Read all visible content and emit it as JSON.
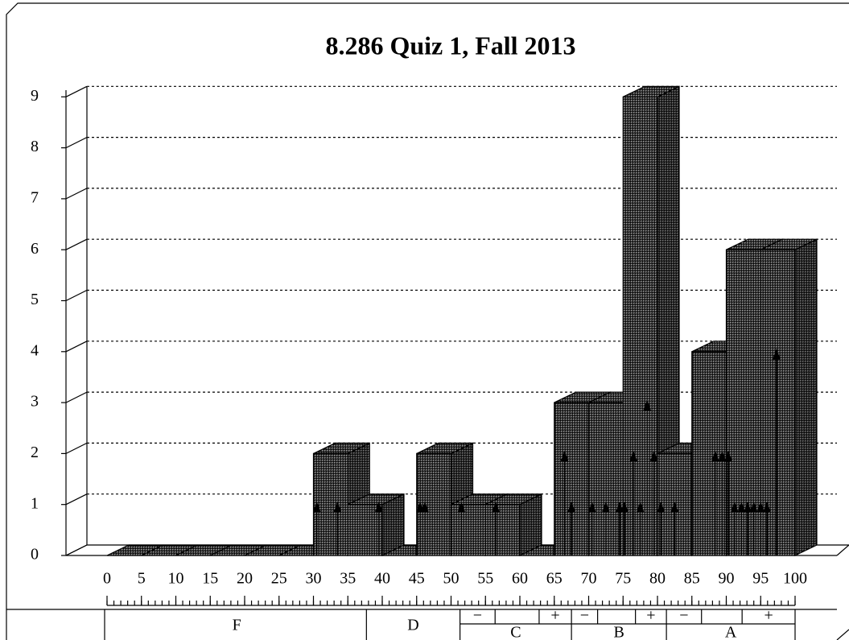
{
  "chart_data": {
    "type": "histogram",
    "title": "8.286 Quiz 1, Fall 2013",
    "bins": [
      0,
      5,
      10,
      15,
      20,
      25,
      30,
      35,
      40,
      45,
      50,
      55,
      60,
      65,
      70,
      75,
      80,
      85,
      90,
      95,
      100
    ],
    "counts": [
      0,
      0,
      0,
      0,
      0,
      0,
      2,
      1,
      0,
      2,
      1,
      1,
      0,
      3,
      3,
      9,
      2,
      4,
      6,
      6
    ],
    "xlim": [
      0,
      100
    ],
    "xticks": [
      0,
      5,
      10,
      15,
      20,
      25,
      30,
      35,
      40,
      45,
      50,
      55,
      60,
      65,
      70,
      75,
      80,
      85,
      90,
      95,
      100
    ],
    "ylim": [
      0,
      9
    ],
    "yticks": [
      0,
      1,
      2,
      3,
      4,
      5,
      6,
      7,
      8,
      9
    ],
    "grid": true,
    "scores": {
      "x": [
        30.5,
        33.5,
        39.5,
        45.5,
        46.2,
        51.5,
        56.5,
        66.5,
        67.5,
        70.5,
        72.5,
        74.5,
        75.2,
        76.5,
        77.5,
        78.5,
        79.5,
        80.5,
        82.5,
        88.4,
        89.4,
        90.3,
        91.2,
        92.2,
        93.1,
        94.0,
        95.0,
        95.9,
        97.3
      ],
      "counts": [
        1,
        1,
        1,
        1,
        1,
        1,
        1,
        2,
        1,
        1,
        1,
        1,
        1,
        2,
        1,
        3,
        2,
        1,
        1,
        2,
        2,
        2,
        1,
        1,
        1,
        1,
        1,
        1,
        4
      ]
    },
    "grades": [
      {
        "name": "F",
        "from": 0,
        "to": 37.7
      },
      {
        "name": "D",
        "from": 37.7,
        "to": 51.3
      },
      {
        "name": "C",
        "from": 51.3,
        "to": 67.5,
        "minus": "−",
        "minus_to": 56.4,
        "plus": "+",
        "plus_from": 62.8
      },
      {
        "name": "B",
        "from": 67.5,
        "to": 81.3,
        "minus": "−",
        "minus_to": 71.3,
        "plus": "+",
        "plus_from": 76.8
      },
      {
        "name": "A",
        "from": 81.3,
        "to": 100,
        "minus": "−",
        "minus_to": 86.4,
        "plus": "+",
        "plus_from": 92.3
      }
    ]
  }
}
